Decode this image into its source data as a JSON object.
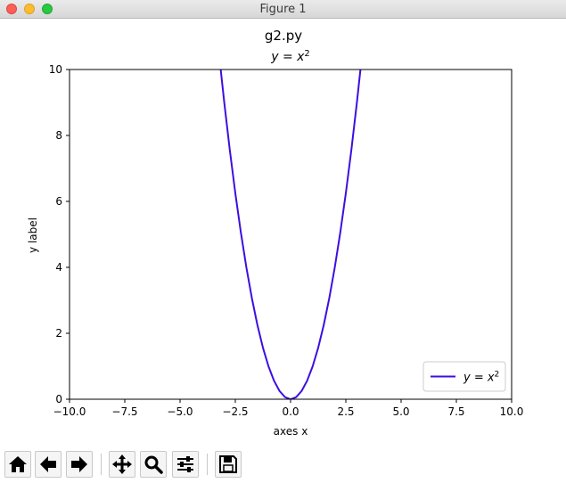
{
  "window": {
    "title": "Figure 1"
  },
  "chart_data": {
    "type": "line",
    "suptitle": "g2.py",
    "title": "y = x²",
    "xlabel": "axes x",
    "ylabel": "y label",
    "xlim": [
      -10,
      10
    ],
    "ylim": [
      0,
      10
    ],
    "xticks": [
      -10,
      -7.5,
      -5,
      -2.5,
      0,
      2.5,
      5,
      7.5,
      10
    ],
    "xtick_labels": [
      "−10.0",
      "−7.5",
      "−5.0",
      "−2.5",
      "0.0",
      "2.5",
      "5.0",
      "7.5",
      "10.0"
    ],
    "yticks": [
      0,
      2,
      4,
      6,
      8,
      10
    ],
    "ytick_labels": [
      "0",
      "2",
      "4",
      "6",
      "8",
      "10"
    ],
    "grid": false,
    "legend_position": "lower right",
    "series": [
      {
        "name": "y = x²",
        "color": "#3d0ee0",
        "x": [
          -3.2,
          -3.0,
          -2.75,
          -2.5,
          -2.25,
          -2.0,
          -1.75,
          -1.5,
          -1.25,
          -1.0,
          -0.75,
          -0.5,
          -0.25,
          0.0,
          0.25,
          0.5,
          0.75,
          1.0,
          1.25,
          1.5,
          1.75,
          2.0,
          2.25,
          2.5,
          2.75,
          3.0,
          3.2
        ],
        "y": [
          10.24,
          9.0,
          7.5625,
          6.25,
          5.0625,
          4.0,
          3.0625,
          2.25,
          1.5625,
          1.0,
          0.5625,
          0.25,
          0.0625,
          0.0,
          0.0625,
          0.25,
          0.5625,
          1.0,
          1.5625,
          2.25,
          3.0625,
          4.0,
          5.0625,
          6.25,
          7.5625,
          9.0,
          10.24
        ]
      }
    ]
  },
  "toolbar": {
    "buttons": [
      {
        "name": "home-button",
        "icon": "home-icon"
      },
      {
        "name": "back-button",
        "icon": "arrow-left-icon"
      },
      {
        "name": "forward-button",
        "icon": "arrow-right-icon"
      },
      {
        "name": "pan-button",
        "icon": "move-icon"
      },
      {
        "name": "zoom-button",
        "icon": "magnifier-icon"
      },
      {
        "name": "configure-subplots-button",
        "icon": "sliders-icon"
      },
      {
        "name": "save-button",
        "icon": "floppy-disk-icon"
      }
    ]
  }
}
